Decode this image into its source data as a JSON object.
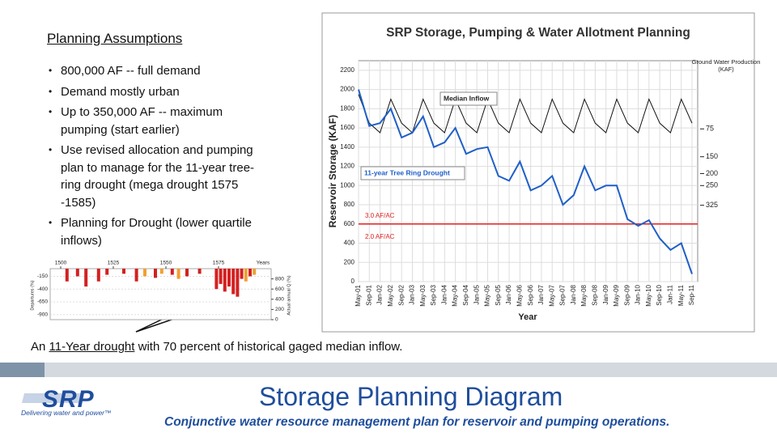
{
  "left_panel": {
    "title": "Planning Assumptions",
    "bullets": [
      "800,000 AF -- full demand",
      "Demand mostly urban",
      "Up to 350,000 AF -- maximum pumping (start earlier)",
      "Use revised allocation and pumping plan to manage for the 11-year tree-ring drought (mega drought 1575 -1585)",
      "Planning for Drought (lower quartile inflows)"
    ]
  },
  "caption": {
    "before": "An ",
    "underlined": "11-Year drought",
    "after": " with 70 percent of historical gaged median inflow."
  },
  "footer": {
    "logo": "SRP",
    "tagline": "Delivering water and power™",
    "title": "Storage Planning Diagram",
    "subtitle": "Conjunctive water resource management plan for reservoir and pumping operations."
  },
  "chart_data": [
    {
      "type": "line",
      "title": "SRP Storage, Pumping & Water Allotment Planning",
      "y_label": "Reservoir Storage (KAF)",
      "x_label": "Year",
      "right_label": "Ground Water Production (KAF)",
      "categories": [
        "May-01",
        "Sep-01",
        "Jan-02",
        "May-02",
        "Sep-02",
        "Jan-03",
        "May-03",
        "Sep-03",
        "Jan-04",
        "May-04",
        "Sep-04",
        "Jan-05",
        "May-05",
        "Sep-05",
        "Jan-06",
        "May-06",
        "Sep-06",
        "Jan-07",
        "May-07",
        "Sep-07",
        "Jan-08",
        "May-08",
        "Sep-08",
        "Jan-09",
        "May-09",
        "Sep-09",
        "Jan-10",
        "May-10",
        "Sep-10",
        "Jan-11",
        "May-11",
        "Sep-11"
      ],
      "series": [
        {
          "name": "Median Inflow",
          "color": "#111111",
          "values": [
            1950,
            1650,
            1550,
            1900,
            1650,
            1550,
            1900,
            1650,
            1550,
            1900,
            1650,
            1550,
            1900,
            1650,
            1550,
            1900,
            1650,
            1550,
            1900,
            1650,
            1550,
            1900,
            1650,
            1550,
            1900,
            1650,
            1550,
            1900,
            1650,
            1550,
            1900,
            1650
          ]
        },
        {
          "name": "11-year Tree Ring Drought",
          "color": "#1f5fc8",
          "values": [
            2000,
            1620,
            1650,
            1800,
            1500,
            1550,
            1720,
            1400,
            1450,
            1600,
            1330,
            1380,
            1400,
            1100,
            1050,
            1250,
            950,
            1000,
            1100,
            800,
            900,
            1200,
            950,
            1000,
            1000,
            650,
            580,
            640,
            450,
            330,
            400,
            80
          ]
        }
      ],
      "ylim": [
        0,
        2300
      ],
      "yticks": [
        0,
        200,
        400,
        600,
        800,
        1000,
        1200,
        1400,
        1600,
        1800,
        2000,
        2200
      ],
      "grid": true,
      "reference_lines": [
        {
          "value": 600,
          "label": "3.0 AF/AC",
          "color": "#e02020"
        }
      ],
      "annotations": [
        {
          "value": 465,
          "label": "2.0 AF/AC",
          "color": "#e02020"
        }
      ],
      "groundwater_levels": [
        {
          "value": 1590,
          "label": "75"
        },
        {
          "value": 1300,
          "label": "150"
        },
        {
          "value": 1125,
          "label": "200"
        },
        {
          "value": 1000,
          "label": "250"
        },
        {
          "value": 795,
          "label": "325"
        }
      ]
    },
    {
      "type": "bar",
      "x_label": "Years",
      "y_label": "Departures (%)",
      "y2_label": "Actual annual Q (%)",
      "xlim": [
        1495,
        1600
      ],
      "xticks": [
        1500,
        1525,
        1550,
        1575
      ],
      "ylim": [
        -1000,
        0
      ],
      "yticks": [
        -150,
        -400,
        -650,
        -900
      ],
      "y2lim": [
        0,
        1000
      ],
      "y2ticks": [
        0,
        200,
        400,
        600,
        800
      ],
      "series": [
        {
          "color": "#d42020",
          "x": [
            1503,
            1508,
            1512,
            1518,
            1522,
            1530,
            1536,
            1545,
            1553,
            1560,
            1566,
            1574,
            1576,
            1578,
            1580,
            1582,
            1584,
            1586,
            1590
          ],
          "values": [
            -250,
            -150,
            -350,
            -250,
            -120,
            -100,
            -250,
            -180,
            -120,
            -150,
            -100,
            -400,
            -300,
            -450,
            -350,
            -500,
            -550,
            -200,
            -150
          ]
        },
        {
          "color": "#f0a030",
          "x": [
            1540,
            1548,
            1556,
            1588,
            1592
          ],
          "values": [
            -150,
            -100,
            -200,
            -250,
            -120
          ]
        }
      ]
    }
  ]
}
